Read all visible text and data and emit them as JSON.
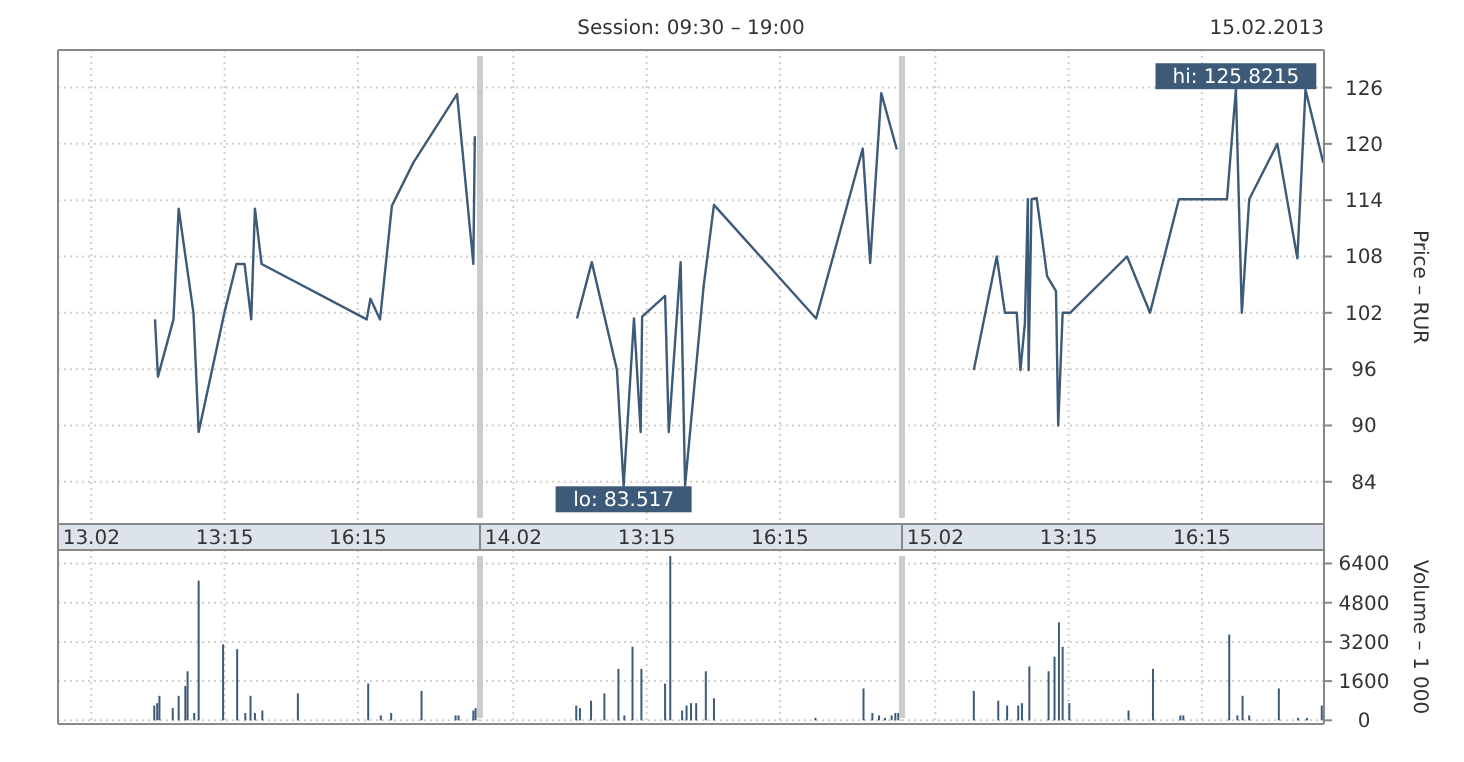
{
  "chart_data": [
    {
      "type": "line",
      "grid": true,
      "marker": "none",
      "line_style": "solid",
      "tick_labels": "x",
      "x": [
        "2013-02-13T11:41",
        "2013-02-13T11:45",
        "2013-02-13T12:06",
        "2013-02-13T12:13",
        "2013-02-13T12:33",
        "2013-02-13T12:40",
        "2013-02-13T13:15",
        "2013-02-13T13:31",
        "2013-02-13T13:42",
        "2013-02-13T13:51",
        "2013-02-13T13:56",
        "2013-02-13T14:05",
        "2013-02-13T16:27",
        "2013-02-13T16:32",
        "2013-02-13T16:45",
        "2013-02-13T17:01",
        "2013-02-13T17:30",
        "2013-02-13T18:29",
        "2013-02-13T18:51",
        "2013-02-13T18:53"
      ],
      "series": [
        {
          "color": "#3d5a78",
          "values": [
            101.3,
            95.2,
            101.3,
            113.1,
            102.0,
            89.3,
            102.1,
            107.2,
            107.2,
            101.3,
            113.1,
            107.2,
            101.3,
            103.5,
            101.3,
            113.4,
            118.0,
            125.3,
            107.2,
            120.8
          ]
        }
      ],
      "xlim": [
        "2013-02-13T09:30",
        "2013-02-13T19:00"
      ],
      "ylim": [
        79.5,
        130
      ],
      "yticks": [
        84,
        90,
        96,
        102,
        108,
        114,
        120,
        126
      ],
      "xticks": [
        {
          "value": "2013-02-13T10:15",
          "label": "13.02"
        },
        {
          "value": "2013-02-13T13:15",
          "label": "13:15"
        },
        {
          "value": "2013-02-13T16:15",
          "label": "16:15"
        }
      ]
    },
    {
      "type": "line",
      "title": "Session: 09:30 – 19:00",
      "grid": true,
      "marker": "none",
      "line_style": "solid",
      "tick_labels": "x",
      "x": [
        "2013-02-14T11:41",
        "2013-02-14T12:01",
        "2013-02-14T12:35",
        "2013-02-14T12:44",
        "2013-02-14T12:58",
        "2013-02-14T13:07",
        "2013-02-14T13:09",
        "2013-02-14T13:40",
        "2013-02-14T13:45",
        "2013-02-14T14:01",
        "2013-02-14T14:07",
        "2013-02-14T14:32",
        "2013-02-14T14:46",
        "2013-02-14T17:04",
        "2013-02-14T18:07",
        "2013-02-14T18:17",
        "2013-02-14T18:32",
        "2013-02-14T18:53"
      ],
      "series": [
        {
          "color": "#3d5a78",
          "values": [
            101.4,
            107.4,
            95.9,
            83.517,
            101.4,
            89.3,
            101.6,
            103.8,
            89.3,
            107.4,
            83.6,
            104.8,
            113.5,
            101.4,
            119.5,
            107.3,
            125.4,
            119.4
          ]
        }
      ],
      "xlim": [
        "2013-02-14T09:30",
        "2013-02-14T19:00"
      ],
      "ylim": [
        79.5,
        130
      ],
      "yticks": [
        84,
        90,
        96,
        102,
        108,
        114,
        120,
        126
      ],
      "xticks": [
        {
          "value": "2013-02-14T10:15",
          "label": "14.02"
        },
        {
          "value": "2013-02-14T13:15",
          "label": "13:15"
        },
        {
          "value": "2013-02-14T16:15",
          "label": "16:15"
        }
      ],
      "annotations": [
        {
          "text": "lo: 83.517",
          "x": "2013-02-14T12:44",
          "y": 83.517
        }
      ]
    },
    {
      "type": "line",
      "ylabel": "Price – RUR",
      "grid": true,
      "marker": "none",
      "line_style": "solid",
      "x": [
        "2013-02-15T11:07",
        "2013-02-15T11:38",
        "2013-02-15T11:49",
        "2013-02-15T12:05",
        "2013-02-15T12:10",
        "2013-02-15T12:16",
        "2013-02-15T12:20",
        "2013-02-15T12:21",
        "2013-02-15T12:25",
        "2013-02-15T12:32",
        "2013-02-15T12:46",
        "2013-02-15T12:58",
        "2013-02-15T13:01",
        "2013-02-15T13:07",
        "2013-02-15T13:17",
        "2013-02-15T14:34",
        "2013-02-15T15:05",
        "2013-02-15T15:44",
        "2013-02-15T16:49",
        "2013-02-15T17:01",
        "2013-02-15T17:09",
        "2013-02-15T17:19",
        "2013-02-15T17:57",
        "2013-02-15T18:24",
        "2013-02-15T18:35",
        "2013-02-15T18:59"
      ],
      "series": [
        {
          "color": "#3d5a78",
          "values": [
            95.9,
            108.0,
            102.0,
            102.0,
            95.9,
            100.9,
            114.1,
            95.9,
            114.1,
            114.2,
            105.9,
            104.3,
            90.0,
            102.0,
            102.0,
            108.0,
            102.0,
            114.1,
            114.1,
            125.8215,
            102.0,
            114.1,
            120.0,
            107.8,
            125.8,
            118.0
          ]
        }
      ],
      "xlim": [
        "2013-02-15T09:30",
        "2013-02-15T19:00"
      ],
      "ylim": [
        79.5,
        130
      ],
      "yticks": [
        84,
        90,
        96,
        102,
        108,
        114,
        120,
        126
      ],
      "xticks": [
        {
          "value": "2013-02-15T10:15",
          "label": "15.02"
        },
        {
          "value": "2013-02-15T13:15",
          "label": "13:15"
        },
        {
          "value": "2013-02-15T16:15",
          "label": "16:15"
        }
      ],
      "annotations": [
        "15.02.2013",
        {
          "text": "hi: 125.8215",
          "x": "2013-02-15T17:01",
          "y": 125.8215
        }
      ]
    },
    {
      "type": "bar",
      "grid": true,
      "tick_labels": false,
      "x": [
        "2013-02-13T11:40",
        "2013-02-13T11:44",
        "2013-02-13T11:47",
        "2013-02-13T12:05",
        "2013-02-13T12:13",
        "2013-02-13T12:22",
        "2013-02-13T12:25",
        "2013-02-13T12:34",
        "2013-02-13T12:40",
        "2013-02-13T13:13",
        "2013-02-13T13:32",
        "2013-02-13T13:43",
        "2013-02-13T13:50",
        "2013-02-13T13:56",
        "2013-02-13T14:06",
        "2013-02-13T14:54",
        "2013-02-13T16:29",
        "2013-02-13T16:46",
        "2013-02-13T17:00",
        "2013-02-13T17:41",
        "2013-02-13T18:27",
        "2013-02-13T18:31",
        "2013-02-13T18:51",
        "2013-02-13T18:54"
      ],
      "series": [
        {
          "color": "#3d5a78",
          "values": [
            600,
            700,
            1000,
            500,
            1000,
            1400,
            2000,
            300,
            5700,
            3100,
            2900,
            300,
            1000,
            300,
            400,
            1100,
            1500,
            200,
            300,
            1200,
            200,
            200,
            400,
            500
          ]
        }
      ],
      "xlim": [
        "2013-02-13T09:30",
        "2013-02-13T19:00"
      ],
      "ylim": [
        -150,
        6950
      ],
      "yticks": [
        0,
        1600,
        3200,
        4800,
        6400
      ],
      "xticks": [
        {
          "value": "2013-02-13T10:15",
          "label": null
        },
        {
          "value": "2013-02-13T13:15",
          "label": null
        },
        {
          "value": "2013-02-13T16:15",
          "label": null
        }
      ]
    },
    {
      "type": "bar",
      "grid": true,
      "tick_labels": false,
      "x": [
        "2013-02-14T11:40",
        "2013-02-14T11:45",
        "2013-02-14T12:00",
        "2013-02-14T12:18",
        "2013-02-14T12:37",
        "2013-02-14T12:45",
        "2013-02-14T12:56",
        "2013-02-14T13:08",
        "2013-02-14T13:40",
        "2013-02-14T13:47",
        "2013-02-14T14:03",
        "2013-02-14T14:09",
        "2013-02-14T14:15",
        "2013-02-14T14:22",
        "2013-02-14T14:35",
        "2013-02-14T14:46",
        "2013-02-14T17:03",
        "2013-02-14T18:08",
        "2013-02-14T18:20",
        "2013-02-14T18:29",
        "2013-02-14T18:37",
        "2013-02-14T18:46",
        "2013-02-14T18:51",
        "2013-02-14T18:55"
      ],
      "series": [
        {
          "color": "#3d5a78",
          "values": [
            600,
            500,
            800,
            1100,
            2100,
            200,
            3000,
            2100,
            1500,
            6700,
            400,
            600,
            700,
            700,
            2000,
            900,
            100,
            1300,
            300,
            200,
            100,
            200,
            300,
            300
          ]
        }
      ],
      "xlim": [
        "2013-02-14T09:30",
        "2013-02-14T19:00"
      ],
      "ylim": [
        -150,
        6950
      ],
      "yticks": [
        0,
        1600,
        3200,
        4800,
        6400
      ],
      "xticks": [
        {
          "value": "2013-02-14T10:15",
          "label": null
        },
        {
          "value": "2013-02-14T13:15",
          "label": null
        },
        {
          "value": "2013-02-14T16:15",
          "label": null
        }
      ]
    },
    {
      "type": "bar",
      "ylabel": "Volume – 1 000",
      "grid": true,
      "tick_labels": "y",
      "x": [
        "2013-02-15T11:07",
        "2013-02-15T11:40",
        "2013-02-15T11:52",
        "2013-02-15T12:07",
        "2013-02-15T12:12",
        "2013-02-15T12:22",
        "2013-02-15T12:48",
        "2013-02-15T12:56",
        "2013-02-15T13:02",
        "2013-02-15T13:07",
        "2013-02-15T13:16",
        "2013-02-15T14:36",
        "2013-02-15T15:09",
        "2013-02-15T15:46",
        "2013-02-15T15:50",
        "2013-02-15T16:52",
        "2013-02-15T17:03",
        "2013-02-15T17:10",
        "2013-02-15T17:19",
        "2013-02-15T17:59",
        "2013-02-15T18:25",
        "2013-02-15T18:37",
        "2013-02-15T18:57"
      ],
      "series": [
        {
          "color": "#3d5a78",
          "values": [
            1200,
            800,
            600,
            600,
            700,
            2200,
            2000,
            2600,
            4000,
            3000,
            700,
            400,
            2100,
            200,
            200,
            3500,
            200,
            1000,
            200,
            1300,
            100,
            100,
            600
          ]
        }
      ],
      "xlim": [
        "2013-02-15T09:30",
        "2013-02-15T19:00"
      ],
      "ylim": [
        -150,
        6950
      ],
      "yticks": [
        0,
        1600,
        3200,
        4800,
        6400
      ],
      "xticks": [
        {
          "value": "2013-02-15T10:15",
          "label": null
        },
        {
          "value": "2013-02-15T13:15",
          "label": null
        },
        {
          "value": "2013-02-15T16:15",
          "label": null
        }
      ]
    }
  ]
}
